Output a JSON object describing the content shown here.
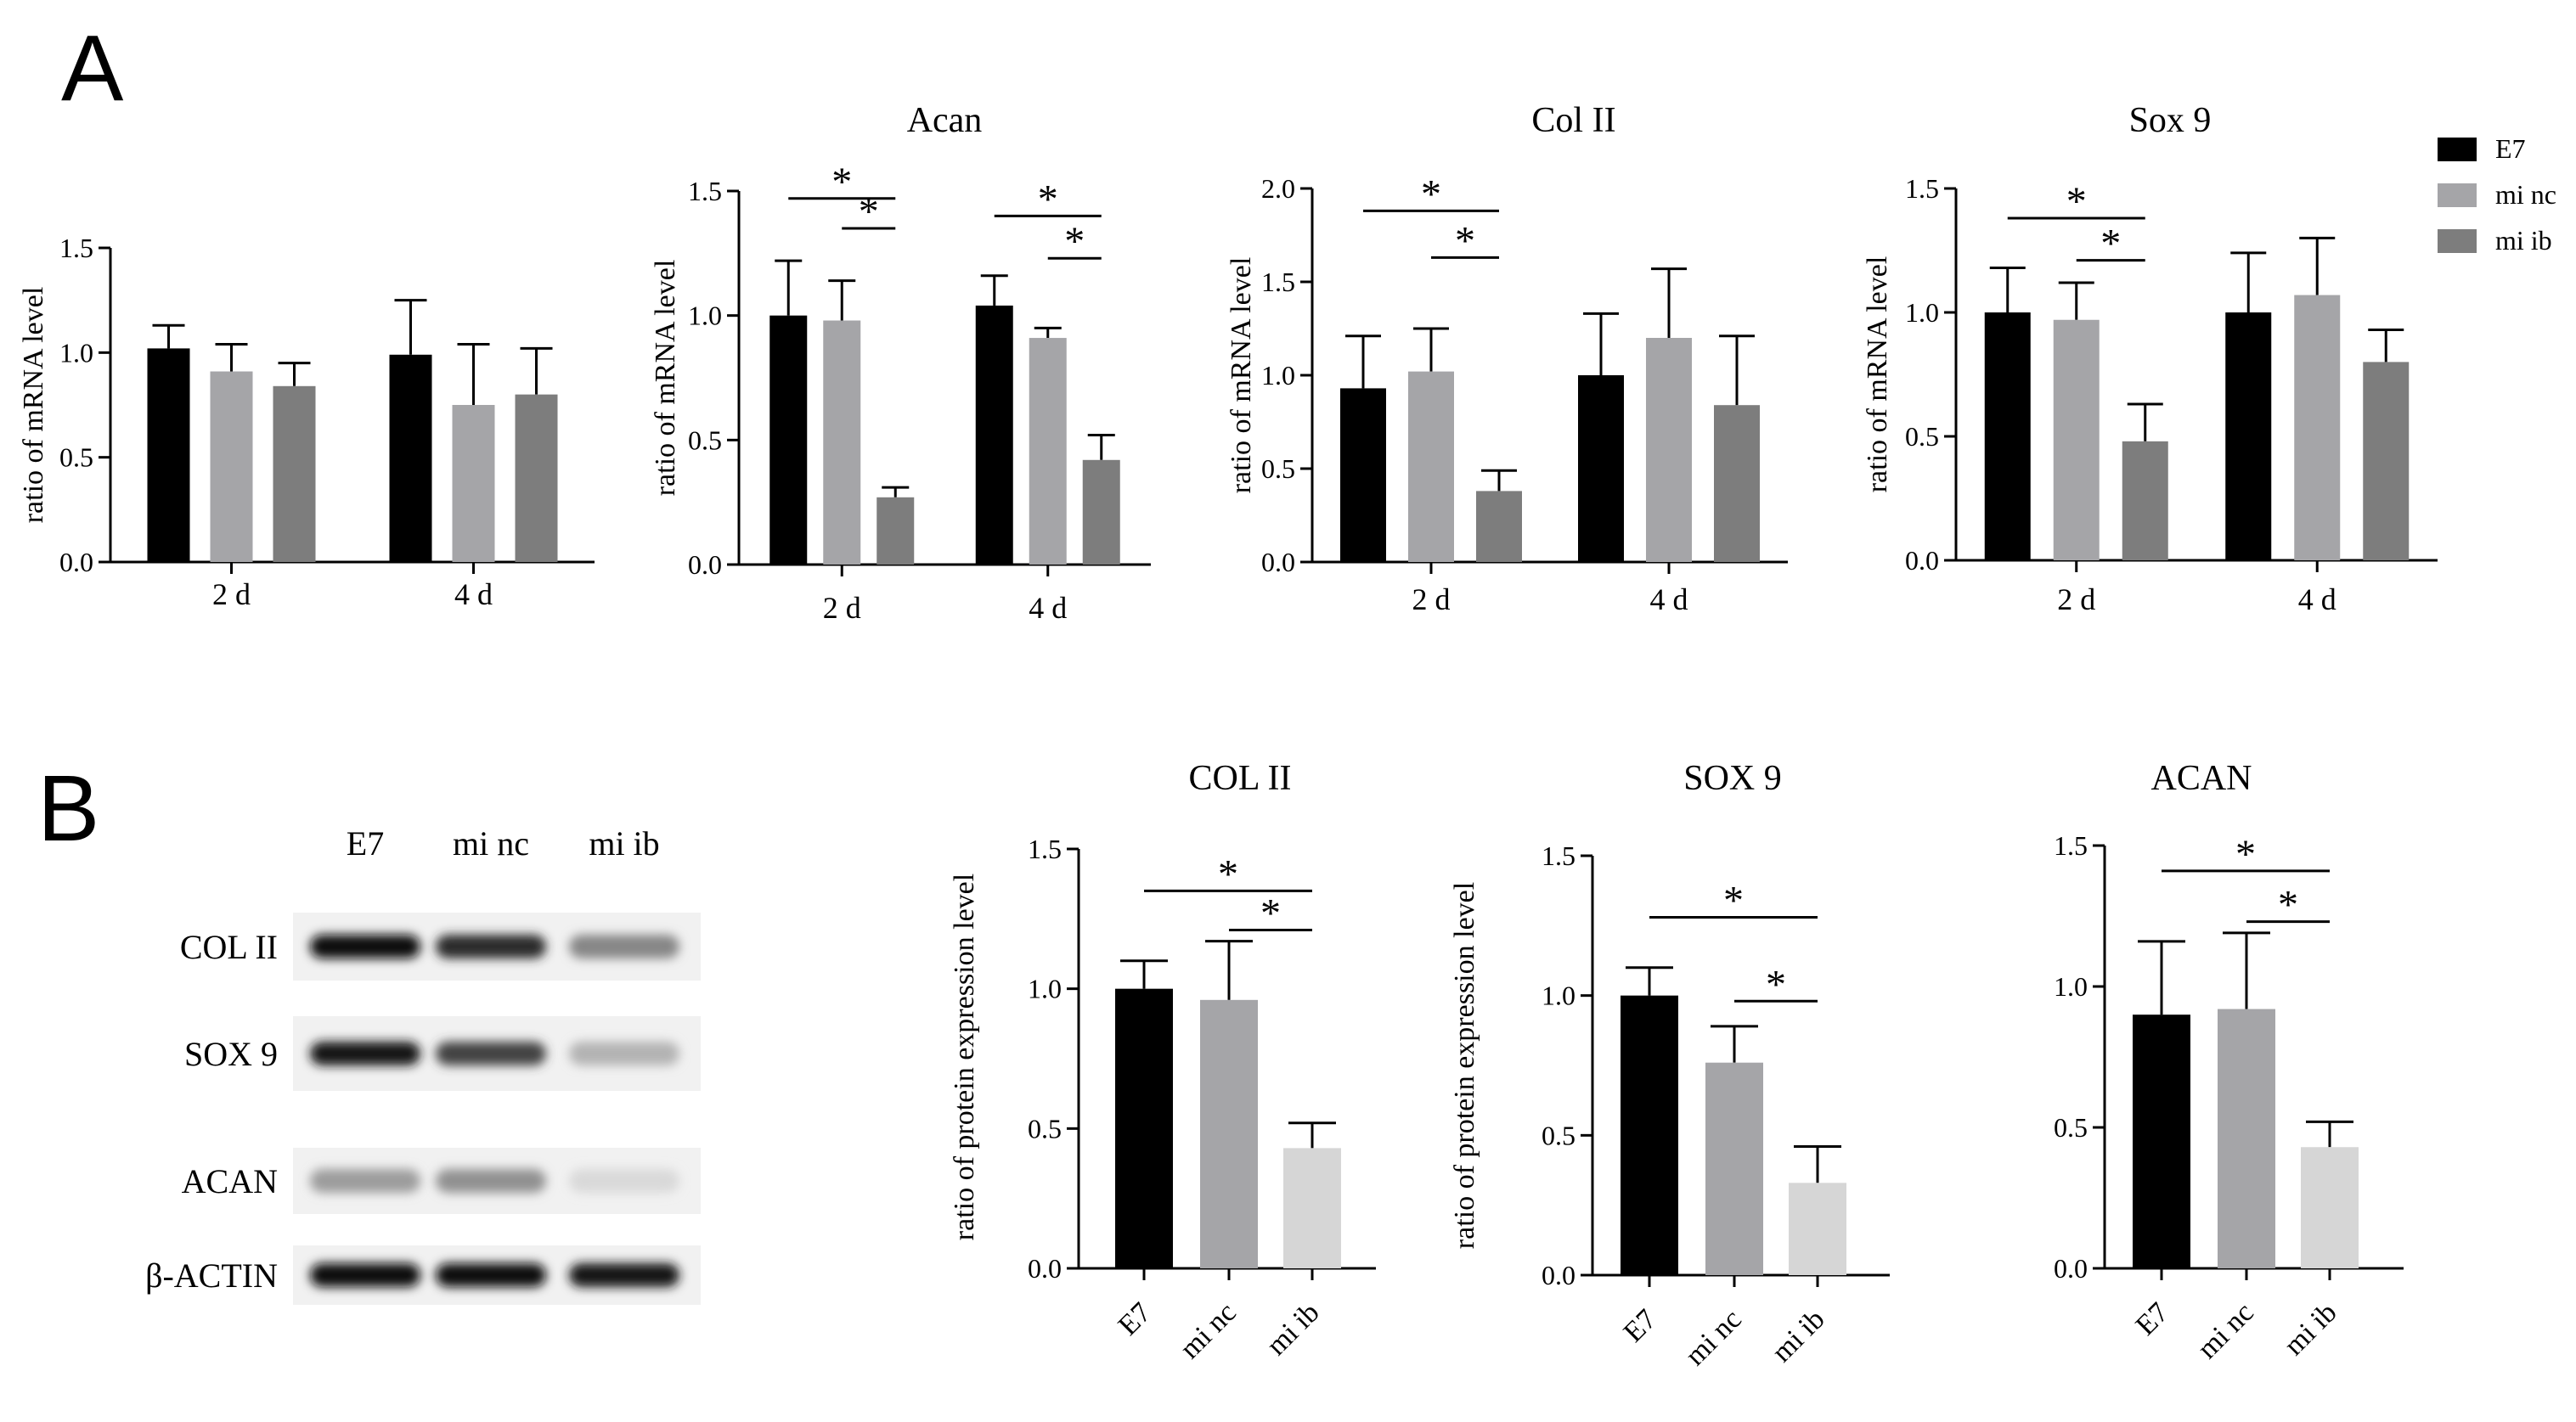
{
  "panels": {
    "a_label": "A",
    "b_label": "B"
  },
  "legend": {
    "items": [
      {
        "label": "E7",
        "color": "#000000"
      },
      {
        "label": "mi nc",
        "color": "#a5a5a8"
      },
      {
        "label": "mi ib",
        "color": "#7d7d7d"
      }
    ]
  },
  "blot": {
    "lanes": [
      "E7",
      "mi nc",
      "mi ib"
    ],
    "rows": [
      {
        "label": "COL II",
        "intensity": [
          1.0,
          0.85,
          0.45
        ]
      },
      {
        "label": "SOX 9",
        "intensity": [
          0.95,
          0.75,
          0.25
        ]
      },
      {
        "label": "ACAN",
        "intensity": [
          0.35,
          0.4,
          0.08
        ]
      },
      {
        "label": "β-ACTIN",
        "intensity": [
          1.0,
          1.0,
          0.95
        ]
      }
    ]
  },
  "chart_data": [
    {
      "type": "bar",
      "title": "",
      "ylabel": "ratio of mRNA level",
      "categories": [
        "2 d",
        "4 d"
      ],
      "ylim": [
        0,
        1.5
      ],
      "yticks": [
        "0.0",
        "0.5",
        "1.0",
        "1.5"
      ],
      "series": [
        {
          "name": "E7",
          "values": [
            1.02,
            0.99
          ],
          "errors": [
            0.11,
            0.26
          ],
          "color": "#000000"
        },
        {
          "name": "mi nc",
          "values": [
            0.91,
            0.75
          ],
          "errors": [
            0.13,
            0.29
          ],
          "color": "#a5a5a8"
        },
        {
          "name": "mi ib",
          "values": [
            0.84,
            0.8
          ],
          "errors": [
            0.11,
            0.22
          ],
          "color": "#7d7d7d"
        }
      ],
      "significance": []
    },
    {
      "type": "bar",
      "title": "Acan",
      "ylabel": "ratio of mRNA level",
      "categories": [
        "2 d",
        "4 d"
      ],
      "ylim": [
        0,
        1.5
      ],
      "yticks": [
        "0.0",
        "0.5",
        "1.0",
        "1.5"
      ],
      "series": [
        {
          "name": "E7",
          "values": [
            1.0,
            1.04
          ],
          "errors": [
            0.22,
            0.12
          ],
          "color": "#000000"
        },
        {
          "name": "mi nc",
          "values": [
            0.98,
            0.91
          ],
          "errors": [
            0.16,
            0.04
          ],
          "color": "#a5a5a8"
        },
        {
          "name": "mi ib",
          "values": [
            0.27,
            0.42
          ],
          "errors": [
            0.04,
            0.1
          ],
          "color": "#7d7d7d"
        }
      ],
      "significance": [
        {
          "group": 0,
          "from": 0,
          "to": 2,
          "level": 1.47,
          "label": "*"
        },
        {
          "group": 0,
          "from": 1,
          "to": 2,
          "level": 1.35,
          "label": "*"
        },
        {
          "group": 1,
          "from": 0,
          "to": 2,
          "level": 1.4,
          "label": "*"
        },
        {
          "group": 1,
          "from": 1,
          "to": 2,
          "level": 1.23,
          "label": "*"
        }
      ]
    },
    {
      "type": "bar",
      "title": "Col II",
      "ylabel": "ratio of mRNA level",
      "categories": [
        "2 d",
        "4 d"
      ],
      "ylim": [
        0,
        2.0
      ],
      "yticks": [
        "0.0",
        "0.5",
        "1.0",
        "1.5",
        "2.0"
      ],
      "series": [
        {
          "name": "E7",
          "values": [
            0.93,
            1.0
          ],
          "errors": [
            0.28,
            0.33
          ],
          "color": "#000000"
        },
        {
          "name": "mi nc",
          "values": [
            1.02,
            1.2
          ],
          "errors": [
            0.23,
            0.37
          ],
          "color": "#a5a5a8"
        },
        {
          "name": "mi ib",
          "values": [
            0.38,
            0.84
          ],
          "errors": [
            0.11,
            0.37
          ],
          "color": "#7d7d7d"
        }
      ],
      "significance": [
        {
          "group": 0,
          "from": 0,
          "to": 2,
          "level": 1.88,
          "label": "*"
        },
        {
          "group": 0,
          "from": 1,
          "to": 2,
          "level": 1.63,
          "label": "*"
        }
      ]
    },
    {
      "type": "bar",
      "title": "Sox 9",
      "ylabel": "ratio of mRNA level",
      "categories": [
        "2 d",
        "4 d"
      ],
      "ylim": [
        0,
        1.5
      ],
      "yticks": [
        "0.0",
        "0.5",
        "1.0",
        "1.5"
      ],
      "series": [
        {
          "name": "E7",
          "values": [
            1.0,
            1.0
          ],
          "errors": [
            0.18,
            0.24
          ],
          "color": "#000000"
        },
        {
          "name": "mi nc",
          "values": [
            0.97,
            1.07
          ],
          "errors": [
            0.15,
            0.23
          ],
          "color": "#a5a5a8"
        },
        {
          "name": "mi ib",
          "values": [
            0.48,
            0.8
          ],
          "errors": [
            0.15,
            0.13
          ],
          "color": "#7d7d7d"
        }
      ],
      "significance": [
        {
          "group": 0,
          "from": 0,
          "to": 2,
          "level": 1.38,
          "label": "*"
        },
        {
          "group": 0,
          "from": 1,
          "to": 2,
          "level": 1.21,
          "label": "*"
        }
      ]
    },
    {
      "type": "bar",
      "title": "COL II",
      "ylabel": "ratio of protein expression level",
      "categories": [
        "E7",
        "mi nc",
        "mi ib"
      ],
      "ylim": [
        0,
        1.5
      ],
      "yticks": [
        "0.0",
        "0.5",
        "1.0",
        "1.5"
      ],
      "values": [
        1.0,
        0.96,
        0.43
      ],
      "errors": [
        0.1,
        0.21,
        0.09
      ],
      "colors": [
        "#000000",
        "#a5a5a8",
        "#d6d6d6"
      ],
      "significance": [
        {
          "from": 0,
          "to": 2,
          "level": 1.35,
          "label": "*"
        },
        {
          "from": 1,
          "to": 2,
          "level": 1.21,
          "label": "*"
        }
      ]
    },
    {
      "type": "bar",
      "title": "SOX 9",
      "ylabel": "ratio of protein expression level",
      "categories": [
        "E7",
        "mi nc",
        "mi ib"
      ],
      "ylim": [
        0,
        1.5
      ],
      "yticks": [
        "0.0",
        "0.5",
        "1.0",
        "1.5"
      ],
      "values": [
        1.0,
        0.76,
        0.33
      ],
      "errors": [
        0.1,
        0.13,
        0.13
      ],
      "colors": [
        "#000000",
        "#a5a5a8",
        "#d6d6d6"
      ],
      "significance": [
        {
          "from": 0,
          "to": 2,
          "level": 1.28,
          "label": "*"
        },
        {
          "from": 1,
          "to": 2,
          "level": 0.98,
          "label": "*"
        }
      ]
    },
    {
      "type": "bar",
      "title": "ACAN",
      "ylabel": "",
      "categories": [
        "E7",
        "mi nc",
        "mi ib"
      ],
      "ylim": [
        0,
        1.5
      ],
      "yticks": [
        "0.0",
        "0.5",
        "1.0",
        "1.5"
      ],
      "values": [
        0.9,
        0.92,
        0.43
      ],
      "errors": [
        0.26,
        0.27,
        0.09
      ],
      "colors": [
        "#000000",
        "#a5a5a8",
        "#d6d6d6"
      ],
      "significance": [
        {
          "from": 0,
          "to": 2,
          "level": 1.41,
          "label": "*"
        },
        {
          "from": 1,
          "to": 2,
          "level": 1.23,
          "label": "*"
        }
      ]
    }
  ]
}
